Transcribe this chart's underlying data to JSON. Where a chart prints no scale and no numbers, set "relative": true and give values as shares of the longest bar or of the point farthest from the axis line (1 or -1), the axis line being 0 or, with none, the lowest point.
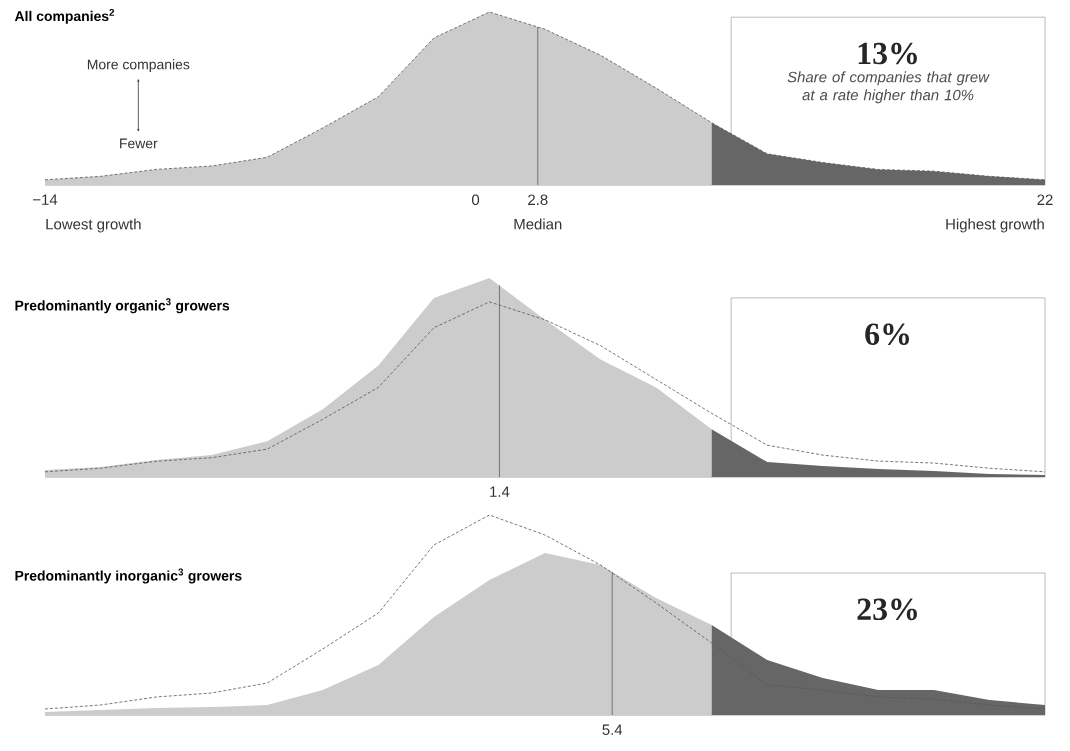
{
  "chart_data": [
    {
      "type": "area",
      "relative": true,
      "title": "All companies$^{2}$",
      "categories": [
        null,
        null,
        null,
        null,
        null,
        null,
        null,
        null,
        null,
        null,
        null,
        null,
        null,
        null,
        null,
        null,
        null,
        null,
        null
      ],
      "series": [
        {
          "color": "#cccccc",
          "values": [
            0.03,
            0.05,
            0.09,
            0.11,
            0.16,
            0.33,
            0.51,
            0.85,
            1.0,
            0.9,
            0.75,
            0.56,
            0.36,
            null,
            null,
            null,
            null,
            null,
            null
          ]
        },
        {
          "color": "#666666",
          "values": [
            null,
            null,
            null,
            null,
            null,
            null,
            null,
            null,
            null,
            null,
            null,
            null,
            0.36,
            0.18,
            0.13,
            0.09,
            0.08,
            0.05,
            0.03
          ]
        },
        {
          "type": "line",
          "line_style": "dashed",
          "color": "#555555",
          "values": [
            0.03,
            0.05,
            0.09,
            0.11,
            0.16,
            0.33,
            0.51,
            0.85,
            1.0,
            0.9,
            0.75,
            0.56,
            0.36,
            0.18,
            0.13,
            0.09,
            0.08,
            0.05,
            0.03
          ]
        }
      ],
      "annotations": [
        "−14",
        "0",
        "2.8",
        "22",
        "Lowest growth",
        "Highest growth",
        "More companies",
        "Fewer",
        "13%",
        "Share of companies that grew at a rate higher than 10%",
        "Median"
      ]
    },
    {
      "type": "area",
      "relative": true,
      "title": "Predominantly organic$^{3}$ growers",
      "categories": [
        null,
        null,
        null,
        null,
        null,
        null,
        null,
        null,
        null,
        null,
        null,
        null,
        null,
        null,
        null,
        null,
        null,
        null,
        null
      ],
      "series": [
        {
          "color": "#cccccc",
          "values": [
            0.035,
            0.05,
            0.085,
            0.11,
            0.18,
            0.34,
            0.56,
            0.9,
            1.0,
            0.79,
            0.59,
            0.45,
            0.24,
            null,
            null,
            null,
            null,
            null,
            null
          ]
        },
        {
          "color": "#666666",
          "values": [
            null,
            null,
            null,
            null,
            null,
            null,
            null,
            null,
            null,
            null,
            null,
            null,
            0.24,
            0.075,
            0.055,
            0.04,
            0.03,
            0.015,
            0.01
          ]
        },
        {
          "type": "line",
          "line_style": "dashed",
          "color": "#555555",
          "values": [
            0.026,
            0.044,
            0.079,
            0.097,
            0.14,
            0.29,
            0.45,
            0.75,
            0.88,
            0.79,
            0.66,
            0.49,
            0.32,
            0.16,
            0.11,
            0.08,
            0.07,
            0.044,
            0.026
          ]
        }
      ],
      "annotations": [
        "1.4",
        "6%"
      ]
    },
    {
      "type": "area",
      "relative": true,
      "title": "Predominantly inorganic$^{3}$ growers",
      "categories": [
        null,
        null,
        null,
        null,
        null,
        null,
        null,
        null,
        null,
        null,
        null,
        null,
        null,
        null,
        null,
        null,
        null,
        null,
        null
      ],
      "series": [
        {
          "color": "#cccccc",
          "values": [
            0.015,
            0.025,
            0.035,
            0.04,
            0.05,
            0.125,
            0.25,
            0.49,
            0.675,
            0.81,
            0.75,
            0.585,
            0.45,
            null,
            null,
            null,
            null,
            null,
            null
          ]
        },
        {
          "color": "#666666",
          "values": [
            null,
            null,
            null,
            null,
            null,
            null,
            null,
            null,
            null,
            null,
            null,
            null,
            0.45,
            0.275,
            0.185,
            0.125,
            0.125,
            0.075,
            0.05
          ]
        },
        {
          "type": "line",
          "line_style": "dashed",
          "color": "#555555",
          "values": [
            0.03,
            0.05,
            0.09,
            0.11,
            0.16,
            0.33,
            0.51,
            0.85,
            1.0,
            0.9,
            0.75,
            0.56,
            0.36,
            0.15,
            0.125,
            0.09,
            0.08,
            0.05,
            0.03
          ]
        }
      ],
      "annotations": [
        "5.4",
        "23%"
      ]
    }
  ]
}
